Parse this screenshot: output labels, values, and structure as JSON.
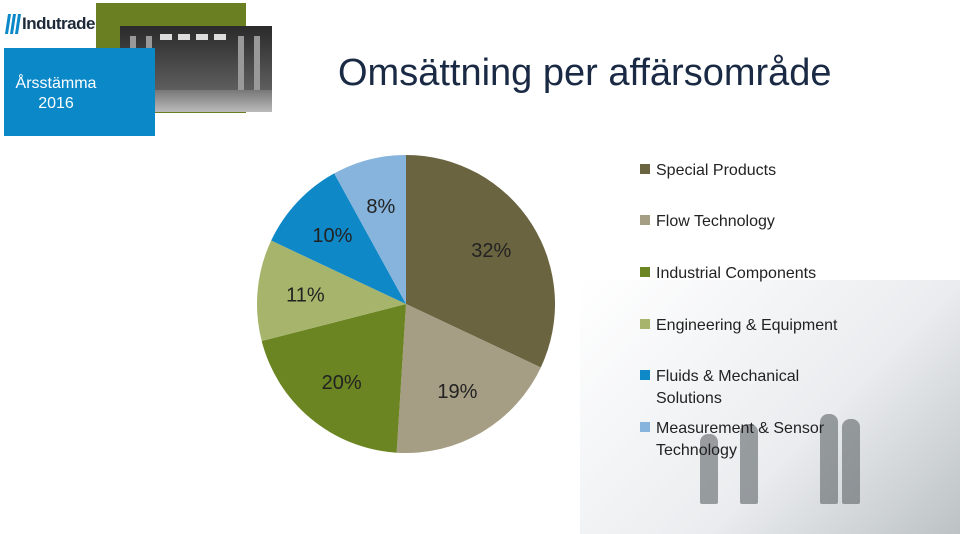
{
  "logo": {
    "text": "Indutrade",
    "icon": "logo-mark-icon"
  },
  "event": {
    "line1": "Årsstämma",
    "line2": "2016"
  },
  "title": "Omsättning per affärsområde",
  "colors": {
    "special_products": "#6b6441",
    "flow_technology": "#a59d84",
    "industrial_components": "#6b8522",
    "engineering_equipment": "#a7b56c",
    "fluids_mechanical": "#0f88c8",
    "measurement_sensor": "#86b4dc",
    "blue_box": "#0a88c8",
    "green_block": "#6a7f22"
  },
  "chart_data": {
    "type": "pie",
    "title": "Omsättning per affärsområde",
    "series": [
      {
        "name": "Special Products",
        "value": 32,
        "label": "32%"
      },
      {
        "name": "Flow Technology",
        "value": 19,
        "label": "19%"
      },
      {
        "name": "Industrial Components",
        "value": 20,
        "label": "20%"
      },
      {
        "name": "Engineering & Equipment",
        "value": 11,
        "label": "11%"
      },
      {
        "name": "Fluids & Mechanical Solutions",
        "value": 10,
        "label": "10%"
      },
      {
        "name": "Measurement & Sensor Technology",
        "value": 8,
        "label": "8%"
      }
    ],
    "legend_position": "right"
  },
  "legend": [
    {
      "line1": "Special Products",
      "line2": ""
    },
    {
      "line1": "Flow Technology",
      "line2": ""
    },
    {
      "line1": "Industrial Components",
      "line2": ""
    },
    {
      "line1": "Engineering & Equipment",
      "line2": ""
    },
    {
      "line1": "Fluids & Mechanical",
      "line2": "Solutions"
    },
    {
      "line1": "Measurement & Sensor",
      "line2": "Technology"
    }
  ]
}
